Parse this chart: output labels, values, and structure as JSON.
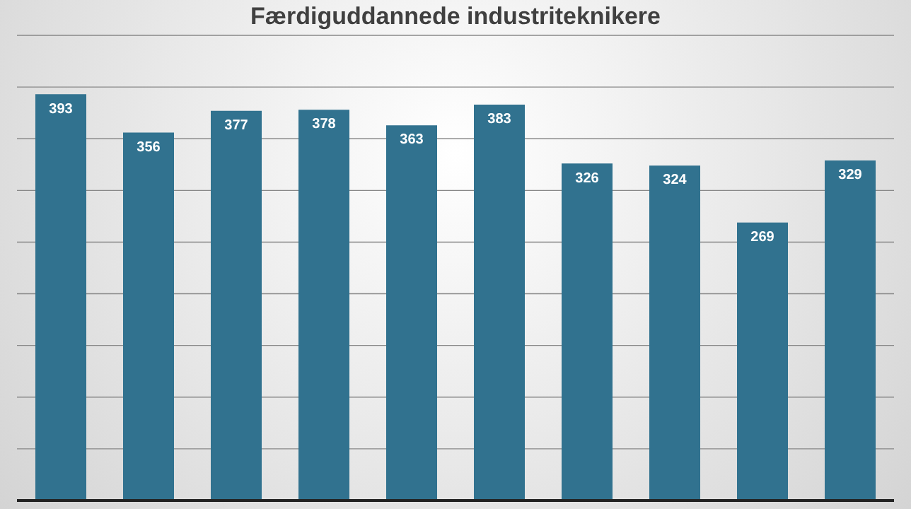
{
  "chart_data": {
    "type": "bar",
    "title": "Færdiguddannede industriteknikere",
    "categories": [
      null,
      null,
      null,
      null,
      null,
      null,
      null,
      null,
      null,
      null
    ],
    "values": [
      393,
      356,
      377,
      378,
      363,
      383,
      326,
      324,
      269,
      329
    ],
    "color": "#31728f",
    "ylim": [
      0,
      450
    ],
    "yticks": [
      {
        "value": 0,
        "label": null
      },
      {
        "value": 50,
        "label": null
      },
      {
        "value": 100,
        "label": null
      },
      {
        "value": 150,
        "label": null
      },
      {
        "value": 200,
        "label": null
      },
      {
        "value": 250,
        "label": null
      },
      {
        "value": 300,
        "label": null
      },
      {
        "value": 350,
        "label": null
      },
      {
        "value": 400,
        "label": null
      },
      {
        "value": 450,
        "label": null
      }
    ],
    "grid": "y",
    "data_labels": true
  }
}
